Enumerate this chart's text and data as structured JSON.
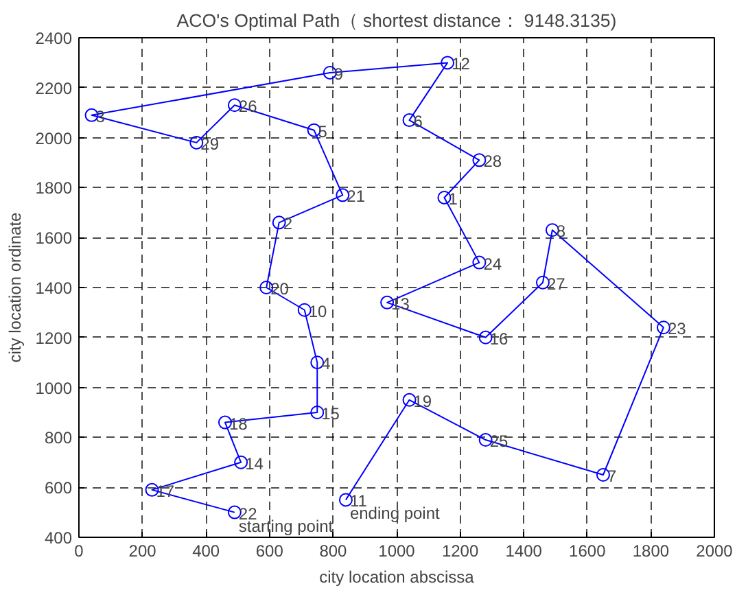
{
  "chart_data": {
    "type": "line",
    "title": "ACO's Optimal Path（ shortest distance： 9148.3135)",
    "xlabel": "city location abscissa",
    "ylabel": "city location ordinate",
    "xlim": [
      0,
      2000
    ],
    "ylim": [
      400,
      2400
    ],
    "xticks": [
      0,
      200,
      400,
      600,
      800,
      1000,
      1200,
      1400,
      1600,
      1800,
      2000
    ],
    "yticks": [
      400,
      600,
      800,
      1000,
      1200,
      1400,
      1600,
      1800,
      2000,
      2200,
      2400
    ],
    "grid": true,
    "marker": "circle",
    "line_style": "solid",
    "series": [
      {
        "color": "#0000ff",
        "x": [
          490,
          230,
          510,
          460,
          750,
          750,
          710,
          590,
          630,
          830,
          740,
          490,
          370,
          40,
          790,
          1160,
          1040,
          1260,
          1150,
          1260,
          970,
          1280,
          1460,
          1490,
          1840,
          1650,
          1280,
          1040,
          840
        ],
        "values": [
          500,
          590,
          700,
          860,
          900,
          1100,
          1310,
          1400,
          1660,
          1770,
          2030,
          2130,
          1980,
          2090,
          2260,
          2300,
          2070,
          1910,
          1760,
          1500,
          1340,
          1200,
          1420,
          1630,
          1240,
          650,
          790,
          950,
          550
        ]
      }
    ],
    "annotations": [
      {
        "text": "22",
        "x": 490,
        "y": 500
      },
      {
        "text": "17",
        "x": 230,
        "y": 590
      },
      {
        "text": "14",
        "x": 510,
        "y": 700
      },
      {
        "text": "18",
        "x": 460,
        "y": 860
      },
      {
        "text": "15",
        "x": 750,
        "y": 900
      },
      {
        "text": "4",
        "x": 750,
        "y": 1100
      },
      {
        "text": "10",
        "x": 710,
        "y": 1310
      },
      {
        "text": "20",
        "x": 590,
        "y": 1400
      },
      {
        "text": "2",
        "x": 630,
        "y": 1660
      },
      {
        "text": "21",
        "x": 830,
        "y": 1770
      },
      {
        "text": "5",
        "x": 740,
        "y": 2030
      },
      {
        "text": "26",
        "x": 490,
        "y": 2130
      },
      {
        "text": "29",
        "x": 370,
        "y": 1980
      },
      {
        "text": "3",
        "x": 40,
        "y": 2090
      },
      {
        "text": "9",
        "x": 790,
        "y": 2260
      },
      {
        "text": "12",
        "x": 1160,
        "y": 2300
      },
      {
        "text": "6",
        "x": 1040,
        "y": 2070
      },
      {
        "text": "28",
        "x": 1260,
        "y": 1910
      },
      {
        "text": "1",
        "x": 1150,
        "y": 1760
      },
      {
        "text": "24",
        "x": 1260,
        "y": 1500
      },
      {
        "text": "13",
        "x": 970,
        "y": 1340
      },
      {
        "text": "16",
        "x": 1280,
        "y": 1200
      },
      {
        "text": "27",
        "x": 1460,
        "y": 1420
      },
      {
        "text": "8",
        "x": 1490,
        "y": 1630
      },
      {
        "text": "23",
        "x": 1840,
        "y": 1240
      },
      {
        "text": "7",
        "x": 1650,
        "y": 650
      },
      {
        "text": "25",
        "x": 1280,
        "y": 790
      },
      {
        "text": "19",
        "x": 1040,
        "y": 950
      },
      {
        "text": "11",
        "x": 840,
        "y": 550
      },
      {
        "text": "starting point",
        "x": 490,
        "y": 500
      },
      {
        "text": "ending point",
        "x": 840,
        "y": 550
      }
    ]
  }
}
